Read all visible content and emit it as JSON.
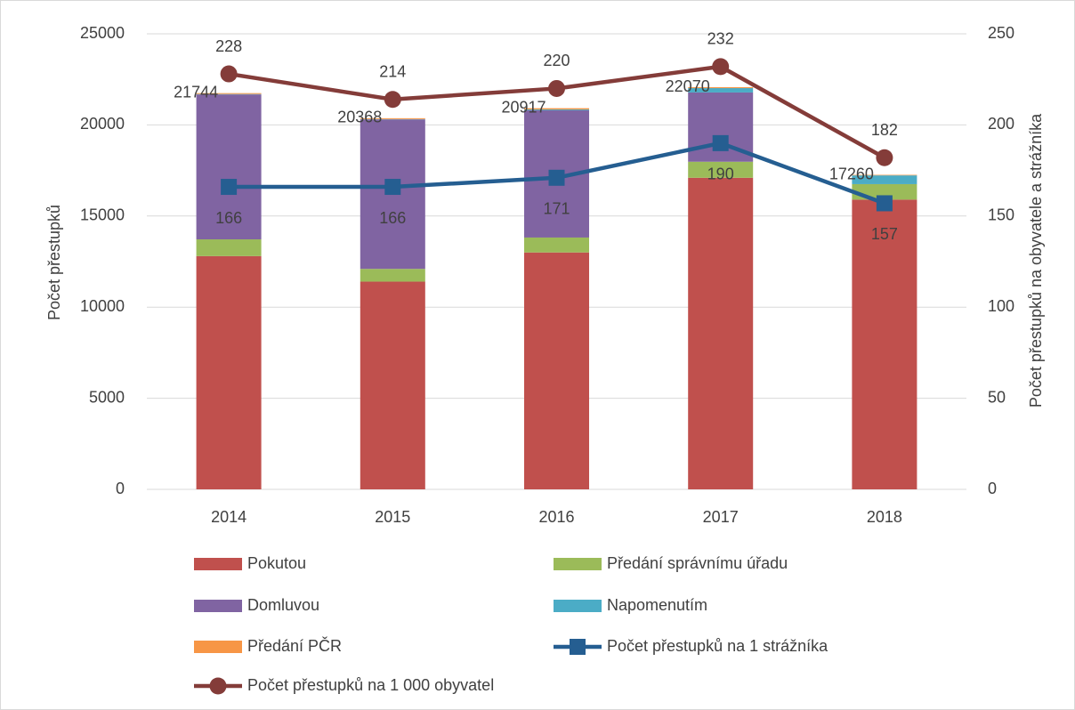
{
  "chart_data": {
    "type": "bar",
    "categories": [
      "2014",
      "2015",
      "2016",
      "2017",
      "2018"
    ],
    "ylabel": "Počet přestupků",
    "y2label": "Počet přestupků na obyvatele a strážníka",
    "ylim": [
      0,
      25000
    ],
    "yticks": [
      0,
      5000,
      10000,
      15000,
      20000,
      25000
    ],
    "y2lim": [
      0,
      250
    ],
    "y2ticks": [
      0,
      50,
      100,
      150,
      200,
      250
    ],
    "grid": true,
    "legend": "bottom",
    "series": [
      {
        "name": "Pokutou",
        "color": "#c0504d",
        "values": [
          12800,
          11400,
          13000,
          17100,
          15900
        ]
      },
      {
        "name": "Předání správnímu úřadu",
        "color": "#9bbb59",
        "values": [
          920,
          700,
          820,
          880,
          850
        ]
      },
      {
        "name": "Domluvou",
        "color": "#8064a2",
        "values": [
          7950,
          8200,
          6980,
          3800,
          0
        ]
      },
      {
        "name": "Napomenutím",
        "color": "#4bacc6",
        "values": [
          24,
          18,
          47,
          240,
          480
        ]
      },
      {
        "name": "Předání PČR",
        "color": "#f79646",
        "values": [
          50,
          50,
          70,
          50,
          30
        ]
      },
      {
        "name": "Počet přestupků na 1 strážníka",
        "type": "line",
        "marker": "square",
        "axis": "y2",
        "color": "#255e91",
        "values": [
          166,
          166,
          171,
          190,
          157
        ]
      },
      {
        "name": "Počet přestupků na 1 000 obyvatel",
        "type": "line",
        "marker": "circle",
        "axis": "y2",
        "color": "#843c39",
        "values": [
          228,
          214,
          220,
          232,
          182
        ]
      }
    ],
    "total_labels": [
      21744,
      20368,
      20917,
      22070,
      17260
    ]
  }
}
